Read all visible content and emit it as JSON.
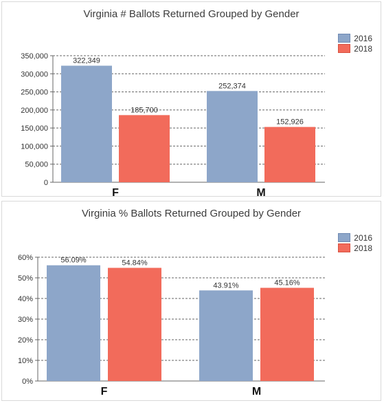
{
  "chart_data": [
    {
      "type": "bar",
      "title": "Virginia # Ballots Returned Grouped by Gender",
      "categories": [
        "F",
        "M"
      ],
      "series": [
        {
          "name": "2016",
          "values": [
            322349,
            252374
          ],
          "labels": [
            "322,349",
            "252,374"
          ],
          "color": "#8da6c9"
        },
        {
          "name": "2018",
          "values": [
            185700,
            152926
          ],
          "labels": [
            "185,700",
            "152,926"
          ],
          "color": "#f26b5b"
        }
      ],
      "yticks": [
        "0",
        "50,000",
        "100,000",
        "150,000",
        "200,000",
        "250,000",
        "300,000",
        "350,000"
      ],
      "ylim": [
        0,
        350000
      ],
      "grid": true,
      "legend": "top-right"
    },
    {
      "type": "bar",
      "title": "Virginia % Ballots Returned Grouped by Gender",
      "categories": [
        "F",
        "M"
      ],
      "series": [
        {
          "name": "2016",
          "values": [
            56.09,
            43.91
          ],
          "labels": [
            "56.09%",
            "43.91%"
          ],
          "color": "#8da6c9"
        },
        {
          "name": "2018",
          "values": [
            54.84,
            45.16
          ],
          "labels": [
            "54.84%",
            "45.16%"
          ],
          "color": "#f26b5b"
        }
      ],
      "yticks": [
        "0%",
        "10%",
        "20%",
        "30%",
        "40%",
        "50%",
        "60%"
      ],
      "ylim": [
        0,
        60
      ],
      "grid": true,
      "legend": "top-right"
    }
  ]
}
